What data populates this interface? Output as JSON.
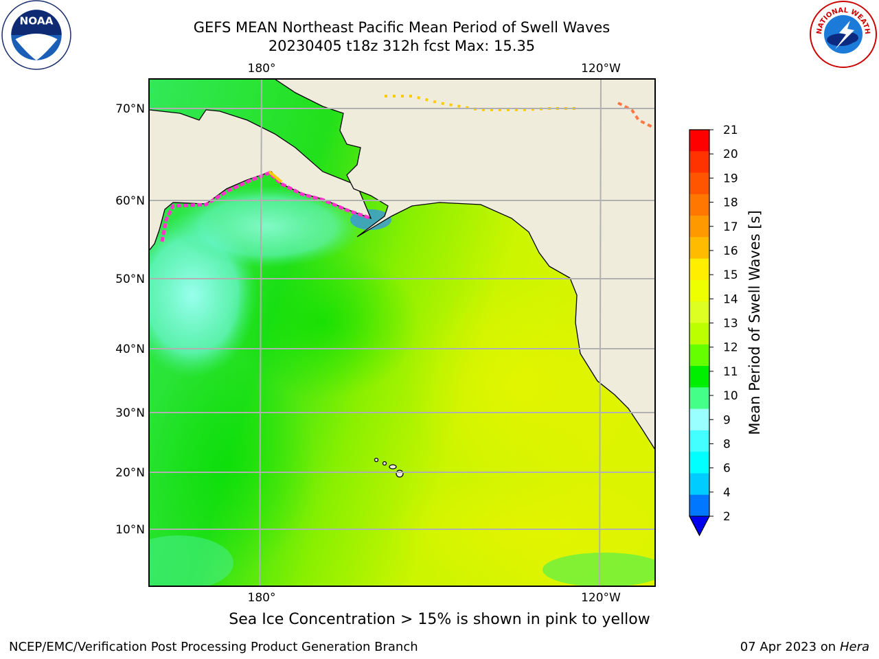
{
  "title": {
    "line1": "GEFS MEAN Northeast Pacific Mean Period of Swell Waves",
    "line2": "20230405 t18z 312h fcst   Max: 15.35"
  },
  "logos": {
    "left": "noaa-logo",
    "left_text": "NOAA",
    "right": "nws-logo",
    "right_text": "NATIONAL WEATHER SERVICE"
  },
  "map": {
    "top_lon_ticks": [
      "180°",
      "120°W"
    ],
    "bottom_lon_ticks": [
      "180°",
      "120°W"
    ],
    "lat_ticks": [
      "70°N",
      "60°N",
      "50°N",
      "40°N",
      "30°N",
      "20°N",
      "10°N"
    ],
    "land_color": "#efecdc",
    "grid_color": "#b0b0b0"
  },
  "colorbar": {
    "label": "Mean Period of Swell Waves [s]",
    "ticks": [
      "21",
      "20",
      "19",
      "18",
      "17",
      "16",
      "15",
      "14",
      "13",
      "12",
      "11",
      "10",
      "9",
      "8",
      "6",
      "4",
      "2"
    ],
    "colors": [
      "#ff0000",
      "#ff3300",
      "#ff5500",
      "#ff7700",
      "#ff9900",
      "#ffbb00",
      "#ffee00",
      "#eeff00",
      "#ddff22",
      "#bbff00",
      "#66ff00",
      "#00ee00",
      "#44ff88",
      "#99ffff",
      "#44ffff",
      "#00ffff",
      "#00ccff",
      "#0077ff"
    ],
    "extend_color": "#0000ee"
  },
  "caption": "Sea Ice Concentration > 15% is shown in pink to yellow",
  "footer": {
    "left": "NCEP/EMC/Verification Post Processing Product Generation Branch",
    "right_date": "07 Apr 2023 on ",
    "right_host": "Hera"
  }
}
